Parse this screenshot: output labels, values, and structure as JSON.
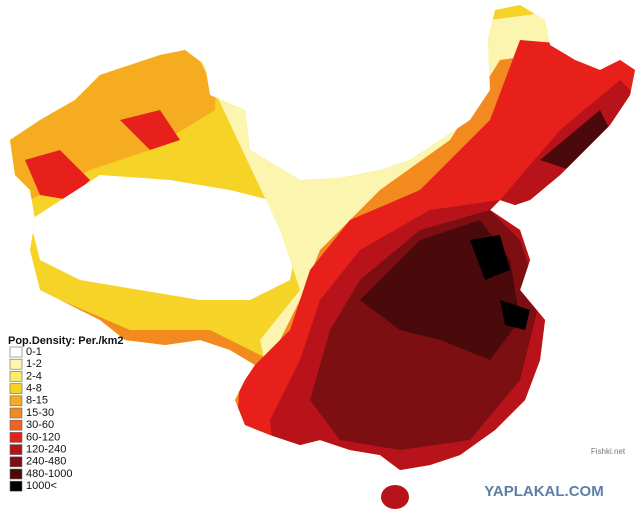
{
  "legend": {
    "title": "Pop.Density: Per./km2",
    "entries": [
      {
        "label": "0-1",
        "color": "#ffffff"
      },
      {
        "label": "1-2",
        "color": "#fbf5b0"
      },
      {
        "label": "2-4",
        "color": "#f6ec6e"
      },
      {
        "label": "4-8",
        "color": "#f5d327"
      },
      {
        "label": "8-15",
        "color": "#f5ac20"
      },
      {
        "label": "15-30",
        "color": "#f38a1f"
      },
      {
        "label": "30-60",
        "color": "#f0621d"
      },
      {
        "label": "60-120",
        "color": "#e8201c"
      },
      {
        "label": "120-240",
        "color": "#b8131a"
      },
      {
        "label": "240-480",
        "color": "#7d0f13"
      },
      {
        "label": "480-1000",
        "color": "#4a0a0c"
      },
      {
        "label": "1000<",
        "color": "#000000"
      }
    ]
  },
  "watermark": {
    "site": "YAPLAKAL.COM",
    "source": "Fishki.net"
  }
}
